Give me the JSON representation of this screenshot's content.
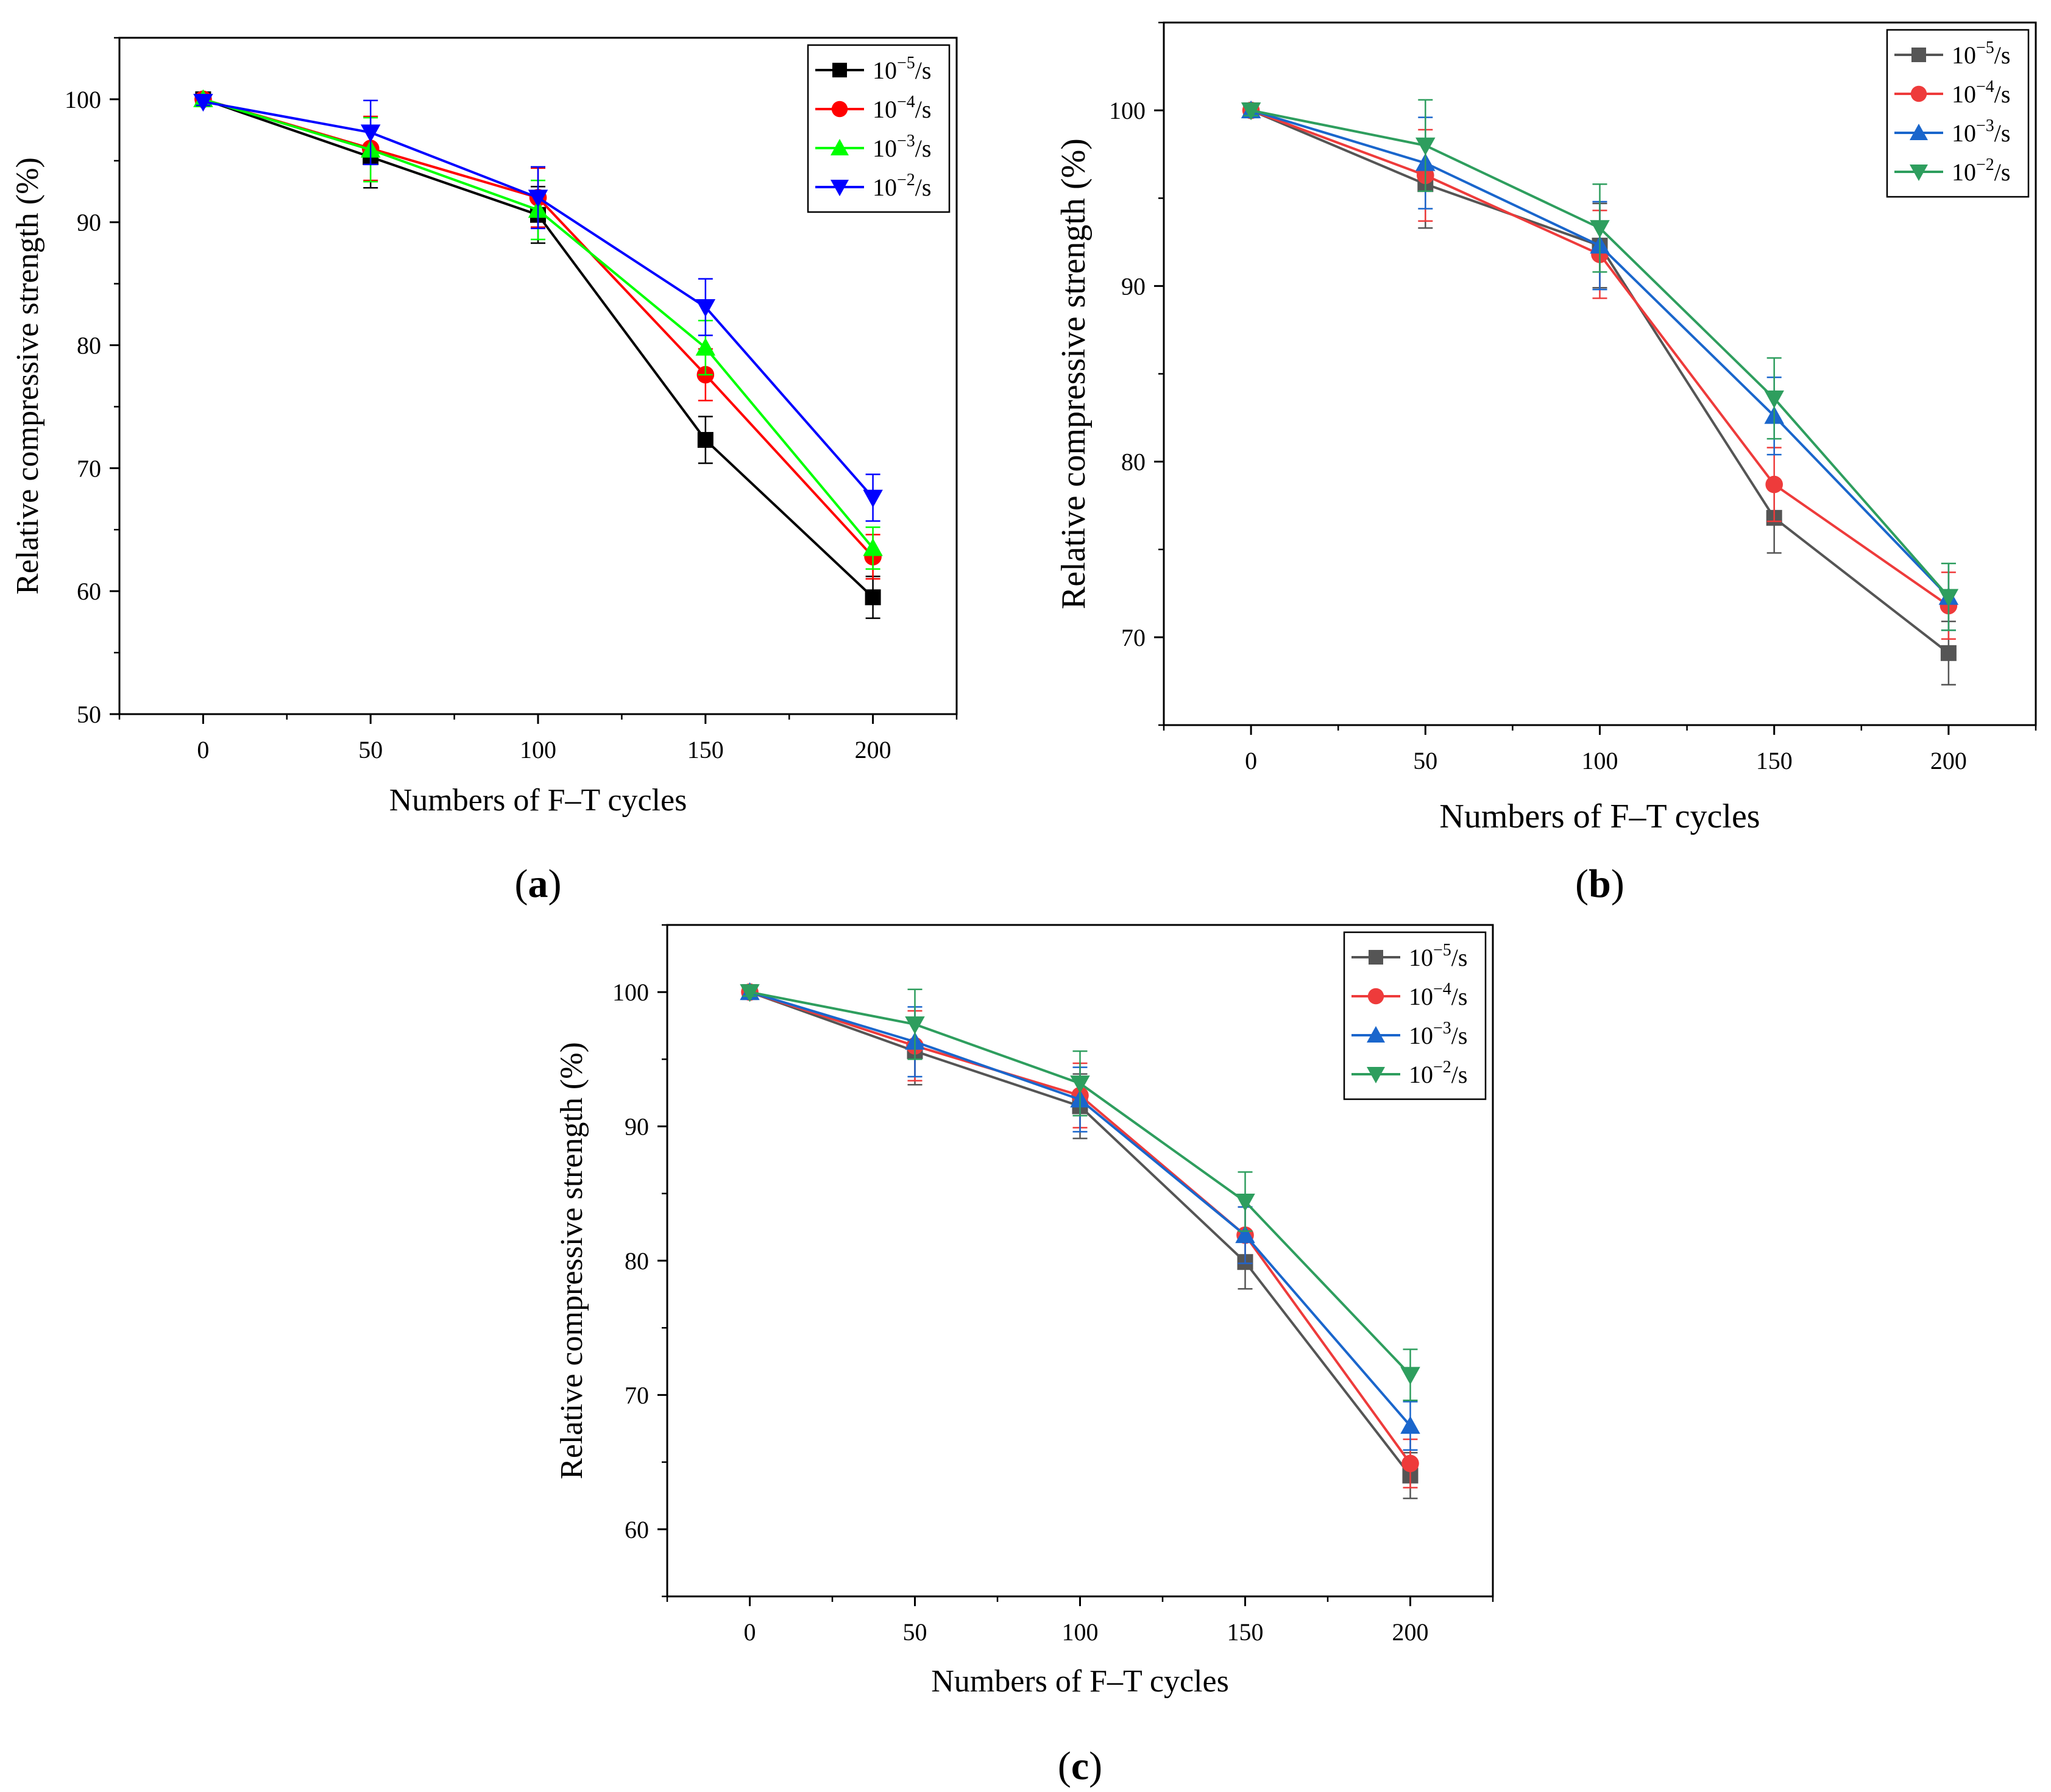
{
  "chart_data": [
    {
      "panel_label": "a",
      "type": "line",
      "xlabel": "Numbers of F–T cycles",
      "ylabel": "Relative compressive strength (%)",
      "xlim": [
        -25,
        225
      ],
      "ylim": [
        50,
        105
      ],
      "xticks": [
        0,
        50,
        100,
        150,
        200
      ],
      "yticks": [
        50,
        60,
        70,
        80,
        90,
        100
      ],
      "legend_position": "top-right",
      "x": [
        0,
        50,
        100,
        150,
        200
      ],
      "series": [
        {
          "base": "10",
          "exp": "−5",
          "unit": "/s",
          "color": "#000000",
          "marker": "square",
          "values": [
            100,
            95.3,
            90.6,
            72.3,
            59.5
          ],
          "errors": [
            0.3,
            2.5,
            2.3,
            1.9,
            1.7
          ]
        },
        {
          "base": "10",
          "exp": "−4",
          "unit": "/s",
          "color": "#ff0000",
          "marker": "circle",
          "values": [
            100,
            96.0,
            92.0,
            77.6,
            62.8
          ],
          "errors": [
            0.3,
            2.6,
            2.4,
            2.1,
            1.8
          ]
        },
        {
          "base": "10",
          "exp": "−3",
          "unit": "/s",
          "color": "#00ff00",
          "marker": "triangle-up",
          "values": [
            100,
            95.9,
            91.0,
            79.8,
            63.5
          ],
          "errors": [
            0.3,
            2.6,
            2.4,
            2.2,
            1.7
          ]
        },
        {
          "base": "10",
          "exp": "−2",
          "unit": "/s",
          "color": "#0000ff",
          "marker": "triangle-down",
          "values": [
            99.8,
            97.3,
            92.0,
            83.1,
            67.6
          ],
          "errors": [
            0.3,
            2.6,
            2.5,
            2.3,
            1.9
          ]
        }
      ]
    },
    {
      "panel_label": "b",
      "type": "line",
      "xlabel": "Numbers of F–T cycles",
      "ylabel": "Relative compressive strength (%)",
      "xlim": [
        -25,
        225
      ],
      "ylim": [
        65,
        105
      ],
      "xticks": [
        0,
        50,
        100,
        150,
        200
      ],
      "yticks": [
        70,
        80,
        90,
        100
      ],
      "legend_position": "top-right",
      "x": [
        0,
        50,
        100,
        150,
        200
      ],
      "series": [
        {
          "base": "10",
          "exp": "−5",
          "unit": "/s",
          "color": "#555555",
          "marker": "square",
          "values": [
            100,
            95.8,
            92.3,
            76.8,
            69.1
          ],
          "errors": [
            0.3,
            2.5,
            2.4,
            2.0,
            1.8
          ]
        },
        {
          "base": "10",
          "exp": "−4",
          "unit": "/s",
          "color": "#ee3b3b",
          "marker": "circle",
          "values": [
            100,
            96.3,
            91.8,
            78.7,
            71.8
          ],
          "errors": [
            0.3,
            2.6,
            2.5,
            2.1,
            1.9
          ]
        },
        {
          "base": "10",
          "exp": "−3",
          "unit": "/s",
          "color": "#1a66cc",
          "marker": "triangle-up",
          "values": [
            100,
            97.0,
            92.3,
            82.6,
            72.3
          ],
          "errors": [
            0.3,
            2.6,
            2.5,
            2.2,
            1.9
          ]
        },
        {
          "base": "10",
          "exp": "−2",
          "unit": "/s",
          "color": "#2e9e5e",
          "marker": "triangle-down",
          "values": [
            100,
            98.0,
            93.3,
            83.6,
            72.3
          ],
          "errors": [
            0.3,
            2.6,
            2.5,
            2.3,
            1.9
          ]
        }
      ]
    },
    {
      "panel_label": "c",
      "type": "line",
      "xlabel": "Numbers of F–T cycles",
      "ylabel": "Relative compressive strength (%)",
      "xlim": [
        -25,
        225
      ],
      "ylim": [
        55,
        105
      ],
      "xticks": [
        0,
        50,
        100,
        150,
        200
      ],
      "yticks": [
        60,
        70,
        80,
        90,
        100
      ],
      "legend_position": "top-right",
      "x": [
        0,
        50,
        100,
        150,
        200
      ],
      "series": [
        {
          "base": "10",
          "exp": "−5",
          "unit": "/s",
          "color": "#555555",
          "marker": "square",
          "values": [
            100,
            95.6,
            91.5,
            79.9,
            64.0
          ],
          "errors": [
            0.3,
            2.5,
            2.4,
            2.0,
            1.7
          ]
        },
        {
          "base": "10",
          "exp": "−4",
          "unit": "/s",
          "color": "#ee3b3b",
          "marker": "circle",
          "values": [
            100,
            96.0,
            92.3,
            81.9,
            64.9
          ],
          "errors": [
            0.3,
            2.6,
            2.4,
            2.1,
            1.8
          ]
        },
        {
          "base": "10",
          "exp": "−3",
          "unit": "/s",
          "color": "#1a66cc",
          "marker": "triangle-up",
          "values": [
            100,
            96.3,
            92.0,
            81.9,
            67.7
          ],
          "errors": [
            0.3,
            2.6,
            2.4,
            2.1,
            1.8
          ]
        },
        {
          "base": "10",
          "exp": "−2",
          "unit": "/s",
          "color": "#2e9e5e",
          "marker": "triangle-down",
          "values": [
            100,
            97.6,
            93.2,
            84.4,
            71.5
          ],
          "errors": [
            0.3,
            2.6,
            2.4,
            2.2,
            1.9
          ]
        }
      ]
    }
  ]
}
